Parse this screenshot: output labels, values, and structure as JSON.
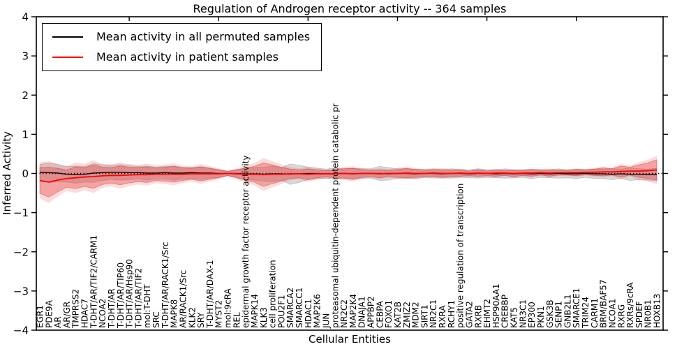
{
  "chart_data": {
    "type": "line",
    "title": "Regulation of Androgen receptor activity -- 364 samples",
    "xlabel": "Cellular Entities",
    "ylabel": "Inferred Activity",
    "ylim": [
      -4,
      4
    ],
    "yticks": [
      -4,
      -3,
      -2,
      -1,
      0,
      1,
      2,
      3,
      4
    ],
    "x_tick_interval": 10,
    "grid": false,
    "legend_position": "upper left",
    "background": "#ffffff",
    "sample_count": "364",
    "zero_line": {
      "y": 0,
      "style": "dotted",
      "color": "#000000"
    },
    "categories": [
      "EGR1",
      "PDE9A",
      "AR",
      "AR/GR",
      "TMPRSS2",
      "HDAC7",
      "T-DHT/AR/TIF2/CARM1",
      "NCOA2",
      "T-DHT/AR",
      "T-DHT/AR/TIP60",
      "T-DHT/AR/Hsp90",
      "T-DHT/AR/TIF2",
      "mol:T-DHT",
      "SRC",
      "T-DHT/AR/RACK1/Src",
      "MAPK8",
      "AR/RACK1/Src",
      "KLK2",
      "SRY",
      "T-DHT/AR/DAX-1",
      "MYST2",
      "mol:9cRA",
      "REL",
      "epidermal growth factor receptor activity",
      "MAPK14",
      "KLK3",
      "cell proliferation",
      "POU2F1",
      "SMARCA2",
      "SMARCC1",
      "HDAC1",
      "MAP2K6",
      "JUN",
      "proteasomal ubiquitin-dependent protein catabolic pr",
      "NR2C2",
      "MAP2K4",
      "DNAJA1",
      "APPBP2",
      "CEBPA",
      "FOXO1",
      "KAT2B",
      "ZMIZ2",
      "MDM2",
      "SIRT1",
      "NR2C1",
      "RXRA",
      "RCHY1",
      "positive regulation of transcription",
      "GATA2",
      "RXRB",
      "EHMT2",
      "HSP90AA1",
      "CREBBP",
      "KAT5",
      "NR3C1",
      "EP300",
      "PKN1",
      "GSK3B",
      "SENP1",
      "GNB2L1",
      "SMARCE1",
      "TRIM24",
      "CARM1",
      "BRM/BAF57",
      "NCOA1",
      "RXRG",
      "RXRs/9cRA",
      "SPDEF",
      "NR0B1",
      "HOXB13"
    ],
    "series": [
      {
        "name": "Mean activity in all permuted samples",
        "color": "#000000",
        "line_width": 1.3,
        "band_color": "rgba(130,130,130,0.30)",
        "band_edge_color": "rgba(120,120,120,0.40)",
        "values": [
          0.03,
          0.02,
          0.01,
          -0.02,
          -0.03,
          -0.02,
          0.01,
          0.02,
          0.03,
          0.03,
          0.02,
          0.02,
          0.01,
          0.01,
          0.02,
          0.01,
          0.01,
          0.02,
          0.01,
          0.01,
          0.0,
          0.0,
          0.0,
          -0.01,
          -0.01,
          -0.02,
          -0.01,
          -0.01,
          -0.02,
          -0.01,
          0.0,
          0.0,
          -0.01,
          0.0,
          0.0,
          -0.01,
          0.0,
          0.0,
          0.0,
          -0.01,
          0.0,
          0.0,
          -0.01,
          0.0,
          0.0,
          -0.01,
          0.0,
          0.0,
          -0.01,
          0.0,
          0.0,
          -0.01,
          0.0,
          -0.01,
          0.0,
          -0.01,
          0.0,
          -0.01,
          0.0,
          -0.01,
          -0.01,
          0.0,
          -0.01,
          -0.01,
          -0.02,
          -0.01,
          -0.02,
          -0.02,
          -0.03,
          -0.03
        ],
        "band_halfwidth": [
          0.2,
          0.25,
          0.22,
          0.2,
          0.22,
          0.2,
          0.24,
          0.2,
          0.18,
          0.2,
          0.18,
          0.16,
          0.18,
          0.15,
          0.16,
          0.18,
          0.15,
          0.14,
          0.16,
          0.13,
          0.1,
          0.06,
          0.1,
          0.14,
          0.16,
          0.18,
          0.2,
          0.16,
          0.26,
          0.22,
          0.16,
          0.14,
          0.12,
          0.14,
          0.12,
          0.14,
          0.12,
          0.12,
          0.18,
          0.16,
          0.12,
          0.12,
          0.12,
          0.1,
          0.12,
          0.1,
          0.12,
          0.1,
          0.1,
          0.12,
          0.1,
          0.1,
          0.12,
          0.1,
          0.1,
          0.12,
          0.1,
          0.1,
          0.12,
          0.1,
          0.12,
          0.1,
          0.12,
          0.12,
          0.14,
          0.12,
          0.16,
          0.14,
          0.14,
          0.16
        ]
      },
      {
        "name": "Mean activity in patient samples",
        "color": "#ff0000",
        "line_width": 1.8,
        "band_color": "rgba(230,40,40,0.32)",
        "band_edge_color": "rgba(210,30,30,0.45)",
        "band_outer_color": "rgba(235,60,60,0.18)",
        "band_outer_scale": 1.4,
        "values": [
          -0.18,
          -0.22,
          -0.17,
          -0.13,
          -0.11,
          -0.09,
          -0.08,
          -0.06,
          -0.05,
          -0.05,
          -0.04,
          -0.03,
          -0.03,
          -0.02,
          -0.02,
          -0.02,
          -0.02,
          -0.01,
          -0.01,
          -0.01,
          -0.01,
          0.0,
          -0.01,
          -0.02,
          -0.02,
          -0.03,
          -0.02,
          -0.02,
          -0.01,
          -0.01,
          -0.02,
          -0.01,
          -0.01,
          -0.01,
          0.0,
          -0.01,
          0.0,
          0.0,
          -0.01,
          0.0,
          0.0,
          0.01,
          0.0,
          0.0,
          0.01,
          0.0,
          0.0,
          0.01,
          0.0,
          0.01,
          0.0,
          0.01,
          0.01,
          0.0,
          0.01,
          0.01,
          0.02,
          0.01,
          0.02,
          0.02,
          0.02,
          0.03,
          0.03,
          0.04,
          0.04,
          0.05,
          0.06,
          0.06,
          0.07,
          0.09
        ],
        "band_halfwidth": [
          0.33,
          0.38,
          0.3,
          0.22,
          0.28,
          0.24,
          0.3,
          0.22,
          0.2,
          0.24,
          0.2,
          0.18,
          0.2,
          0.16,
          0.18,
          0.2,
          0.16,
          0.14,
          0.18,
          0.14,
          0.1,
          0.05,
          0.1,
          0.16,
          0.2,
          0.3,
          0.24,
          0.18,
          0.12,
          0.1,
          0.14,
          0.1,
          0.08,
          0.1,
          0.12,
          0.14,
          0.1,
          0.08,
          0.1,
          0.08,
          0.1,
          0.12,
          0.1,
          0.08,
          0.08,
          0.1,
          0.08,
          0.08,
          0.06,
          0.08,
          0.06,
          0.08,
          0.06,
          0.08,
          0.06,
          0.08,
          0.06,
          0.08,
          0.06,
          0.06,
          0.08,
          0.06,
          0.08,
          0.1,
          0.08,
          0.14,
          0.1,
          0.16,
          0.2,
          0.26
        ]
      }
    ]
  }
}
